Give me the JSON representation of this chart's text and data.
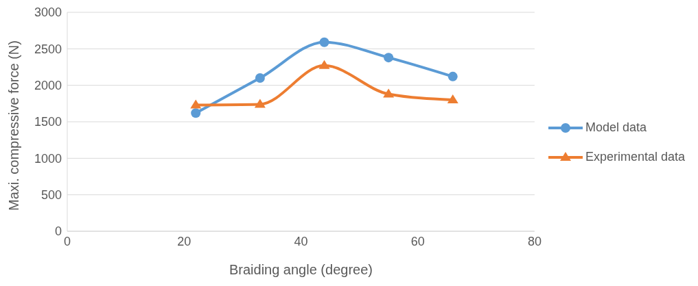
{
  "chart_data": {
    "type": "line",
    "xlabel": "Braiding angle (degree)",
    "ylabel": "Maxi. compressive force (N)",
    "x": [
      22,
      33,
      44,
      55,
      66
    ],
    "series": [
      {
        "name": "Model data",
        "color": "#5b9bd5",
        "marker": "circle",
        "values": [
          1620,
          2100,
          2590,
          2380,
          2120
        ]
      },
      {
        "name": "Experimental data",
        "color": "#ed7d31",
        "marker": "triangle",
        "values": [
          1730,
          1740,
          2270,
          1880,
          1800
        ]
      }
    ],
    "xlim": [
      0,
      80
    ],
    "xticks": [
      0,
      20,
      40,
      60,
      80
    ],
    "ylim": [
      0,
      3000
    ],
    "yticks": [
      0,
      500,
      1000,
      1500,
      2000,
      2500,
      3000
    ],
    "grid": "y",
    "legend": "right",
    "line_style": "solid"
  }
}
